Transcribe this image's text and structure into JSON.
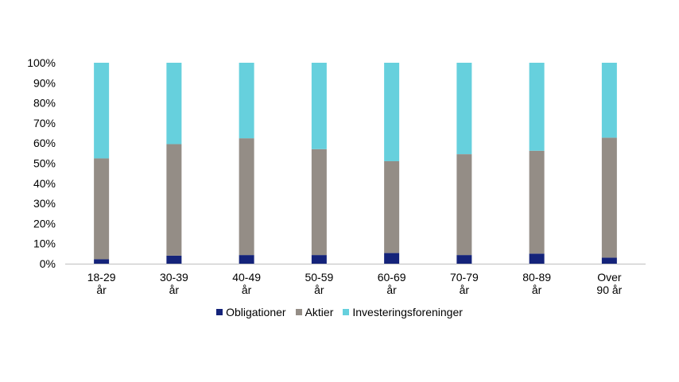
{
  "chart_data": {
    "type": "bar",
    "stacked": true,
    "categories": [
      [
        "18-29",
        "år"
      ],
      [
        "30-39",
        "år"
      ],
      [
        "40-49",
        "år"
      ],
      [
        "50-59",
        "år"
      ],
      [
        "60-69",
        "år"
      ],
      [
        "70-79",
        "år"
      ],
      [
        "80-89",
        "år"
      ],
      [
        "Over",
        "90 år"
      ]
    ],
    "series": [
      {
        "name": "Obligationer",
        "color": "#14237a",
        "values": [
          2.2,
          4.0,
          4.3,
          4.3,
          5.3,
          4.3,
          5.0,
          3.0
        ]
      },
      {
        "name": "Aktier",
        "color": "#948d86",
        "values": [
          50.2,
          55.5,
          58.1,
          52.7,
          45.7,
          50.2,
          51.2,
          59.7
        ]
      },
      {
        "name": "Investeringsforeninger",
        "color": "#66d0dd",
        "values": [
          47.6,
          40.5,
          37.6,
          43.0,
          49.0,
          45.5,
          43.8,
          37.3
        ]
      }
    ],
    "ylim": [
      0,
      100
    ],
    "yticks": [
      "0%",
      "10%",
      "20%",
      "30%",
      "40%",
      "50%",
      "60%",
      "70%",
      "80%",
      "90%",
      "100%"
    ],
    "grid": false,
    "legend_position": "bottom"
  }
}
